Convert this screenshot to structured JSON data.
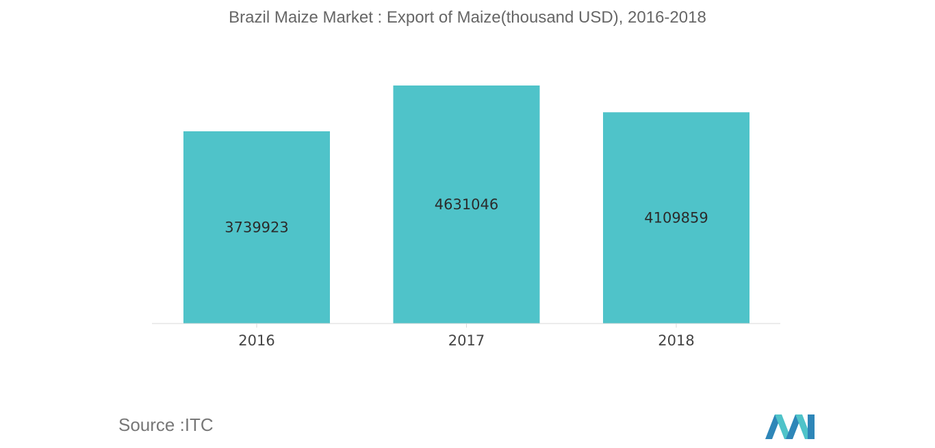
{
  "chart_data": {
    "type": "bar",
    "title": "Brazil Maize Market : Export of Maize(thousand USD), 2016-2018",
    "categories": [
      "2016",
      "2017",
      "2018"
    ],
    "values": [
      3739923,
      4631046,
      4109859
    ],
    "data_labels": [
      "3739923",
      "4631046",
      "4109859"
    ],
    "xlabel": "",
    "ylabel": "",
    "ylim": [
      0,
      4631046
    ],
    "grid": false,
    "legend": "none",
    "bar_color": "#4FC3C9",
    "axis_color": "#D9D9D9"
  },
  "source": {
    "label": "Source :",
    "value": "ITC"
  },
  "logo": {
    "icon": "mordor-intelligence-logo",
    "colors": [
      "#2E86B8",
      "#4FC3C9"
    ]
  }
}
